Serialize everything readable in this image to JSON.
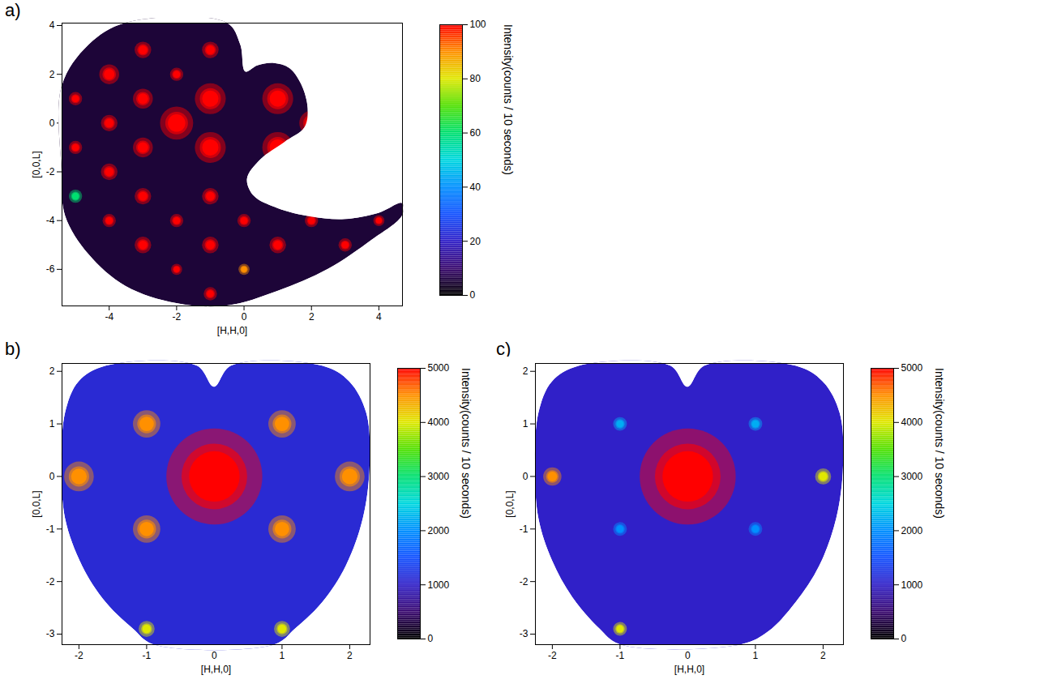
{
  "chart_data": [
    {
      "type": "heatmap",
      "title": "a)",
      "x_label": "[H,H,0]",
      "y_label": "[0,0,L]",
      "xlim": [
        -5.4,
        4.7
      ],
      "ylim": [
        -7.5,
        4.1
      ],
      "xticks": [
        -4,
        -2,
        0,
        2,
        4
      ],
      "yticks": [
        -6,
        -4,
        -2,
        0,
        2,
        4
      ],
      "background": 5,
      "coverage": [
        [
          -3.5,
          4.1
        ],
        [
          -0.5,
          4.1
        ],
        [
          -0.1,
          3.2
        ],
        [
          0.05,
          2.1
        ],
        [
          0.4,
          2.35
        ],
        [
          0.9,
          2.45
        ],
        [
          1.35,
          2.25
        ],
        [
          1.7,
          1.6
        ],
        [
          1.9,
          0.6
        ],
        [
          1.8,
          -0.2
        ],
        [
          1.2,
          -0.8
        ],
        [
          0.5,
          -1.5
        ],
        [
          0.1,
          -2.3
        ],
        [
          0.3,
          -3.0
        ],
        [
          1.0,
          -3.5
        ],
        [
          2.0,
          -3.85
        ],
        [
          3.0,
          -3.95
        ],
        [
          4.0,
          -3.7
        ],
        [
          4.7,
          -3.3
        ],
        [
          4.7,
          -3.8
        ],
        [
          3.8,
          -4.8
        ],
        [
          2.5,
          -6.0
        ],
        [
          1.0,
          -6.9
        ],
        [
          -0.5,
          -7.5
        ],
        [
          -2.0,
          -7.4
        ],
        [
          -3.5,
          -6.7
        ],
        [
          -4.6,
          -5.4
        ],
        [
          -5.3,
          -3.8
        ],
        [
          -5.4,
          -2.0
        ],
        [
          -5.4,
          1.5
        ],
        [
          -4.6,
          3.2
        ]
      ],
      "peaks": [
        {
          "x": -1,
          "y": 1,
          "value": 400,
          "width": 0.28
        },
        {
          "x": 1,
          "y": 1,
          "value": 350,
          "width": 0.28
        },
        {
          "x": -1,
          "y": -1,
          "value": 400,
          "width": 0.28
        },
        {
          "x": 1,
          "y": -1,
          "value": 350,
          "width": 0.28
        },
        {
          "x": -2,
          "y": 0,
          "value": 400,
          "width": 0.3
        },
        {
          "x": 2,
          "y": 0,
          "value": 250,
          "width": 0.22
        },
        {
          "x": -3,
          "y": 1,
          "value": 200,
          "width": 0.18
        },
        {
          "x": -4,
          "y": 2,
          "value": 180,
          "width": 0.18
        },
        {
          "x": -3,
          "y": 3,
          "value": 150,
          "width": 0.15
        },
        {
          "x": -1,
          "y": 3,
          "value": 150,
          "width": 0.15
        },
        {
          "x": -2,
          "y": 2,
          "value": 120,
          "width": 0.12
        },
        {
          "x": -5,
          "y": 1,
          "value": 150,
          "width": 0.12
        },
        {
          "x": -3,
          "y": -1,
          "value": 200,
          "width": 0.18
        },
        {
          "x": -4,
          "y": 0,
          "value": 130,
          "width": 0.15
        },
        {
          "x": -4,
          "y": -2,
          "value": 180,
          "width": 0.15
        },
        {
          "x": -3,
          "y": -3,
          "value": 150,
          "width": 0.15
        },
        {
          "x": -1,
          "y": -3,
          "value": 200,
          "width": 0.15
        },
        {
          "x": -2,
          "y": -4,
          "value": 130,
          "width": 0.12
        },
        {
          "x": -3,
          "y": -5,
          "value": 150,
          "width": 0.15
        },
        {
          "x": -1,
          "y": -5,
          "value": 180,
          "width": 0.15
        },
        {
          "x": 1,
          "y": -5,
          "value": 150,
          "width": 0.15
        },
        {
          "x": 2,
          "y": -4,
          "value": 150,
          "width": 0.12
        },
        {
          "x": 3,
          "y": -5,
          "value": 120,
          "width": 0.12
        },
        {
          "x": -1,
          "y": -7,
          "value": 150,
          "width": 0.12
        },
        {
          "x": -4,
          "y": -4,
          "value": 100,
          "width": 0.12
        },
        {
          "x": 0,
          "y": -4,
          "value": 110,
          "width": 0.12
        },
        {
          "x": -5,
          "y": -1,
          "value": 100,
          "width": 0.12
        },
        {
          "x": -2,
          "y": -6,
          "value": 100,
          "width": 0.1
        },
        {
          "x": 4,
          "y": -4,
          "value": 110,
          "width": 0.1
        },
        {
          "x": 0,
          "y": -6,
          "value": 90,
          "width": 0.1
        },
        {
          "x": -5,
          "y": -3,
          "value": 60,
          "width": 0.12
        }
      ],
      "colorbar": {
        "range": [
          0,
          100
        ],
        "ticks": [
          0,
          20,
          40,
          60,
          80,
          100
        ],
        "label": [
          "Intensity",
          "(counts / 10 seconds)"
        ]
      }
    },
    {
      "type": "heatmap",
      "title": "b)",
      "x_label": "[H,H,0]",
      "y_label": "[0,0,L]",
      "xlim": [
        -2.25,
        2.3
      ],
      "ylim": [
        -3.2,
        2.15
      ],
      "xticks": [
        -2,
        -1,
        0,
        1,
        2
      ],
      "yticks": [
        -3,
        -2,
        -1,
        0,
        1,
        2
      ],
      "background": 1100,
      "coverage": [
        [
          -1.6,
          2.1
        ],
        [
          -0.25,
          2.1
        ],
        [
          0,
          1.7
        ],
        [
          0.25,
          2.1
        ],
        [
          1.6,
          2.1
        ],
        [
          2.0,
          1.8
        ],
        [
          2.25,
          1.2
        ],
        [
          2.3,
          0.2
        ],
        [
          2.2,
          -0.8
        ],
        [
          1.95,
          -1.7
        ],
        [
          1.6,
          -2.4
        ],
        [
          1.2,
          -2.9
        ],
        [
          0.9,
          -3.2
        ],
        [
          -0.9,
          -3.2
        ],
        [
          -1.2,
          -2.9
        ],
        [
          -1.6,
          -2.4
        ],
        [
          -1.95,
          -1.7
        ],
        [
          -2.2,
          -0.8
        ],
        [
          -2.25,
          0.2
        ],
        [
          -2.2,
          1.2
        ],
        [
          -2.0,
          1.8
        ]
      ],
      "peaks": [
        {
          "x": 0,
          "y": 0,
          "value": 8000,
          "width": 0.42
        },
        {
          "x": -1,
          "y": 1,
          "value": 4500,
          "width": 0.12
        },
        {
          "x": 1,
          "y": 1,
          "value": 4500,
          "width": 0.12
        },
        {
          "x": -1,
          "y": -1,
          "value": 4500,
          "width": 0.12
        },
        {
          "x": 1,
          "y": -1,
          "value": 4500,
          "width": 0.12
        },
        {
          "x": -2,
          "y": 0,
          "value": 4500,
          "width": 0.13
        },
        {
          "x": 2,
          "y": 0,
          "value": 4500,
          "width": 0.13
        },
        {
          "x": -1,
          "y": -2.9,
          "value": 4000,
          "width": 0.07
        },
        {
          "x": 1,
          "y": -2.9,
          "value": 4000,
          "width": 0.07
        }
      ],
      "colorbar": {
        "range": [
          0,
          5000
        ],
        "ticks": [
          0,
          1000,
          2000,
          3000,
          4000,
          5000
        ],
        "label": [
          "Intensity",
          "(counts / 10 seconds)"
        ]
      }
    },
    {
      "type": "heatmap",
      "title": "c)",
      "x_label": "[H,H,0]",
      "y_label": "[0,0,L]",
      "xlim": [
        -2.25,
        2.3
      ],
      "ylim": [
        -3.2,
        2.15
      ],
      "xticks": [
        -2,
        -1,
        0,
        1,
        2
      ],
      "yticks": [
        -3,
        -2,
        -1,
        0,
        1,
        2
      ],
      "background": 1000,
      "coverage": [
        [
          -1.6,
          2.1
        ],
        [
          -0.25,
          2.1
        ],
        [
          0,
          1.7
        ],
        [
          0.25,
          2.1
        ],
        [
          1.6,
          2.1
        ],
        [
          2.0,
          1.8
        ],
        [
          2.25,
          1.2
        ],
        [
          2.3,
          0.2
        ],
        [
          2.2,
          -0.8
        ],
        [
          1.95,
          -1.7
        ],
        [
          1.6,
          -2.4
        ],
        [
          1.2,
          -2.95
        ],
        [
          0.8,
          -3.2
        ],
        [
          -1.0,
          -3.2
        ],
        [
          -1.3,
          -2.9
        ],
        [
          -1.7,
          -2.3
        ],
        [
          -2.0,
          -1.6
        ],
        [
          -2.2,
          -0.8
        ],
        [
          -2.25,
          0.2
        ],
        [
          -2.2,
          1.2
        ],
        [
          -2.0,
          1.8
        ]
      ],
      "peaks": [
        {
          "x": 0,
          "y": 0,
          "value": 8000,
          "width": 0.42
        },
        {
          "x": -1,
          "y": 1,
          "value": 2200,
          "width": 0.06
        },
        {
          "x": 1,
          "y": 1,
          "value": 2200,
          "width": 0.06
        },
        {
          "x": -1,
          "y": -1,
          "value": 2000,
          "width": 0.06
        },
        {
          "x": 1,
          "y": -1,
          "value": 2000,
          "width": 0.06
        },
        {
          "x": -2,
          "y": 0,
          "value": 4500,
          "width": 0.08
        },
        {
          "x": 2,
          "y": 0,
          "value": 4000,
          "width": 0.07
        },
        {
          "x": -1,
          "y": -2.9,
          "value": 4000,
          "width": 0.06
        }
      ],
      "colorbar": {
        "range": [
          0,
          5000
        ],
        "ticks": [
          0,
          1000,
          2000,
          3000,
          4000,
          5000
        ],
        "label": [
          "Intensity",
          "(counts / 10 seconds)"
        ]
      }
    }
  ]
}
